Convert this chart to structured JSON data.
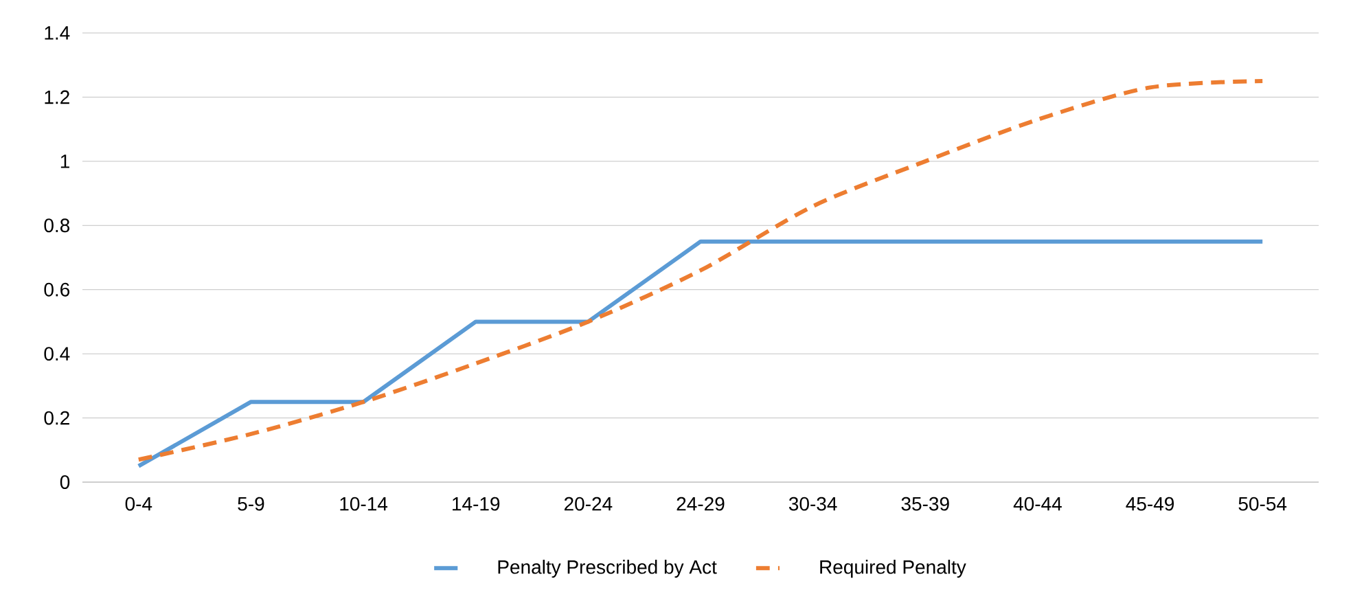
{
  "chart_data": {
    "type": "line",
    "categories": [
      "0-4",
      "5-9",
      "10-14",
      "14-19",
      "20-24",
      "24-29",
      "30-34",
      "35-39",
      "40-44",
      "45-49",
      "50-54"
    ],
    "series": [
      {
        "name": "Penalty Prescribed by Act",
        "color": "#5b9bd5",
        "line_style": "solid",
        "values": [
          0.05,
          0.25,
          0.25,
          0.5,
          0.5,
          0.75,
          0.75,
          0.75,
          0.75,
          0.75,
          0.75
        ]
      },
      {
        "name": "Required Penalty",
        "color": "#ed7d31",
        "line_style": "dashed",
        "values": [
          0.07,
          0.15,
          0.25,
          0.37,
          0.5,
          0.66,
          0.86,
          1.0,
          1.13,
          1.23,
          1.25
        ]
      }
    ],
    "ylim": [
      0,
      1.4
    ],
    "yticks": [
      0,
      0.2,
      0.4,
      0.6,
      0.8,
      1,
      1.2,
      1.4
    ],
    "grid": "y",
    "legend": "bottom",
    "marker": "none"
  }
}
